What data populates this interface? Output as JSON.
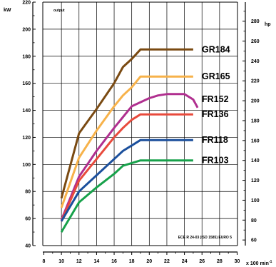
{
  "chart_data": {
    "type": "line",
    "title": "",
    "annotation_top": "output",
    "footnote": "ECE R 24-03 (ISO 1585) EURO 5",
    "left_axis": {
      "unit": "kW",
      "range": [
        40,
        220
      ],
      "ticks": [
        "40",
        "60",
        "80",
        "100",
        "120",
        "140",
        "160",
        "180",
        "200",
        "220"
      ]
    },
    "right_axis": {
      "unit": "hp",
      "range": [
        60,
        280
      ],
      "ticks": [
        "60",
        "80",
        "100",
        "120",
        "140",
        "160",
        "180",
        "200",
        "220",
        "240",
        "260",
        "280"
      ]
    },
    "x_axis": {
      "unit_prefix": "x 100 min",
      "unit_sup": "-1",
      "range": [
        8,
        30
      ],
      "ticks": [
        "8",
        "10",
        "12",
        "14",
        "16",
        "18",
        "20",
        "22",
        "24",
        "26",
        "28",
        "30"
      ]
    },
    "grid": true,
    "series": [
      {
        "name": "GR184",
        "color": "#7a4a12",
        "points": [
          [
            10,
            75
          ],
          [
            12,
            123
          ],
          [
            14,
            141
          ],
          [
            16,
            160
          ],
          [
            17,
            172
          ],
          [
            18,
            178
          ],
          [
            19,
            185
          ],
          [
            25,
            185
          ]
        ]
      },
      {
        "name": "GR165",
        "color": "#f7b24a",
        "points": [
          [
            10,
            68
          ],
          [
            12,
            105
          ],
          [
            14,
            125
          ],
          [
            16,
            143
          ],
          [
            17,
            151
          ],
          [
            18,
            157
          ],
          [
            19,
            165
          ],
          [
            25,
            165
          ]
        ]
      },
      {
        "name": "FR152",
        "color": "#b02f8f",
        "points": [
          [
            10,
            59
          ],
          [
            12,
            91
          ],
          [
            14,
            110
          ],
          [
            16,
            127
          ],
          [
            17,
            135
          ],
          [
            18,
            143
          ],
          [
            20,
            149
          ],
          [
            21,
            151
          ],
          [
            22,
            152
          ],
          [
            24,
            152
          ],
          [
            25,
            148
          ],
          [
            25.5,
            142
          ]
        ]
      },
      {
        "name": "FR136",
        "color": "#e84a3c",
        "points": [
          [
            10,
            58
          ],
          [
            12,
            88
          ],
          [
            14,
            104
          ],
          [
            16,
            120
          ],
          [
            17,
            127
          ],
          [
            18,
            133
          ],
          [
            19,
            137
          ],
          [
            25,
            137
          ]
        ]
      },
      {
        "name": "FR118",
        "color": "#1b4f9c",
        "points": [
          [
            10,
            58
          ],
          [
            12,
            80
          ],
          [
            14,
            92
          ],
          [
            16,
            104
          ],
          [
            17,
            110
          ],
          [
            18,
            114
          ],
          [
            19,
            118
          ],
          [
            25,
            118
          ]
        ]
      },
      {
        "name": "FR103",
        "color": "#17a14a",
        "points": [
          [
            10,
            50
          ],
          [
            12,
            72
          ],
          [
            14,
            83
          ],
          [
            16,
            93
          ],
          [
            17,
            99
          ],
          [
            18,
            101
          ],
          [
            19,
            103
          ],
          [
            25,
            103
          ]
        ]
      }
    ]
  }
}
